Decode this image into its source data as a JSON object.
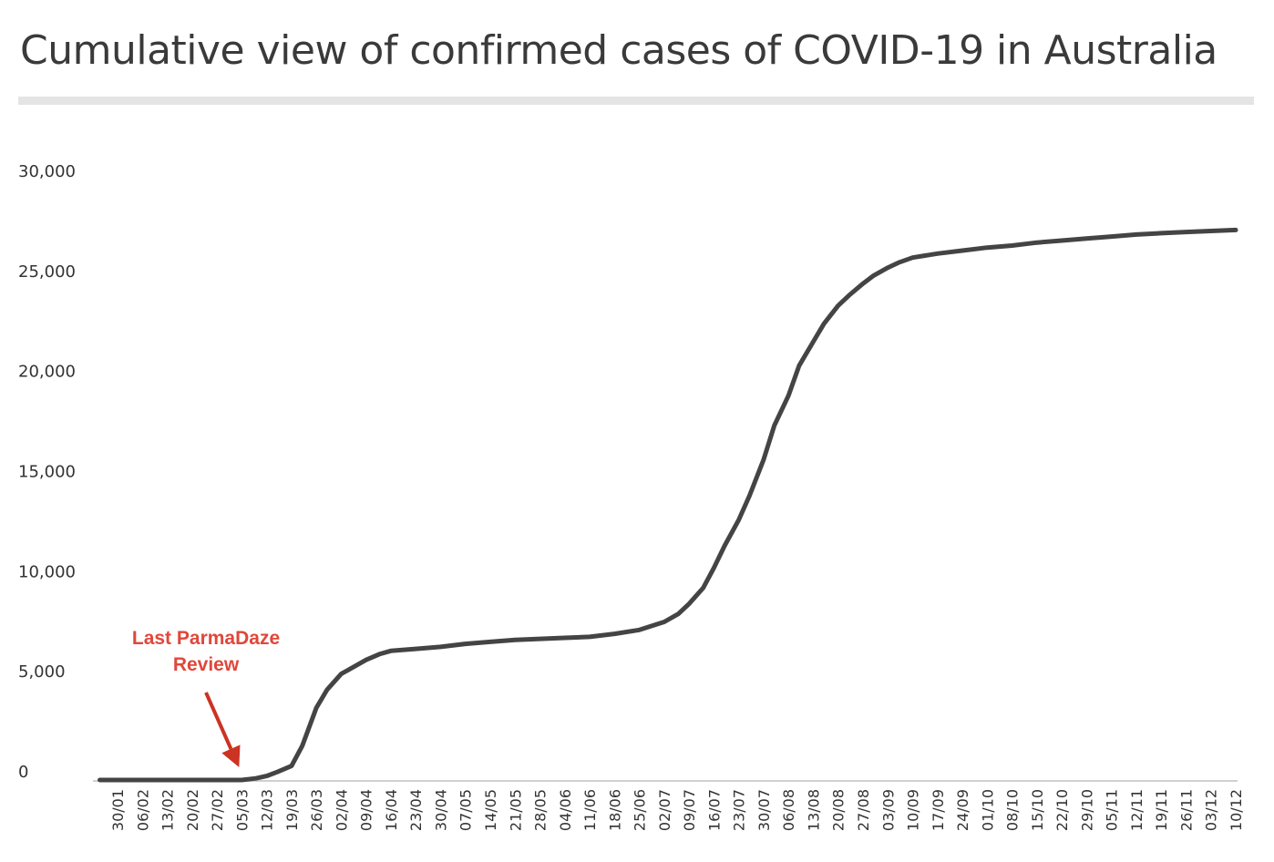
{
  "title": "Cumulative view of confirmed cases of COVID-19 in Australia",
  "colors": {
    "line": "#444444",
    "annotation": "#e0473a",
    "arrow": "#cc3322",
    "title_rule": "#e4e4e4"
  },
  "chart_data": {
    "type": "line",
    "title": "Cumulative view of confirmed cases of COVID-19 in Australia",
    "xlabel": "",
    "ylabel": "",
    "ylim": [
      0,
      30000
    ],
    "yticks": [
      0,
      5000,
      10000,
      15000,
      20000,
      25000,
      30000
    ],
    "ytick_labels": [
      "0",
      "5,000",
      "10,000",
      "15,000",
      "20,000",
      "25,000",
      "30,000"
    ],
    "xticks": [
      "30/01",
      "06/02",
      "13/02",
      "20/02",
      "27/02",
      "05/03",
      "12/03",
      "19/03",
      "26/03",
      "02/04",
      "09/04",
      "16/04",
      "23/04",
      "30/04",
      "07/05",
      "14/05",
      "21/05",
      "28/05",
      "04/06",
      "11/06",
      "18/06",
      "25/06",
      "02/07",
      "09/07",
      "16/07",
      "23/07",
      "30/07",
      "06/08",
      "13/08",
      "20/08",
      "27/08",
      "03/09",
      "10/09",
      "17/09",
      "24/09",
      "01/10",
      "08/10",
      "15/10",
      "22/10",
      "29/10",
      "05/11",
      "12/11",
      "19/11",
      "26/11",
      "03/12",
      "10/12"
    ],
    "grid": false,
    "legend": "none",
    "series": [
      {
        "x": [
          "25/01",
          "05/03",
          "09/03",
          "12/03",
          "15/03",
          "19/03",
          "22/03",
          "26/03",
          "29/03",
          "02/04",
          "06/04",
          "09/04",
          "13/04",
          "16/04",
          "23/04",
          "30/04",
          "07/05",
          "14/05",
          "21/05",
          "28/05",
          "04/06",
          "11/06",
          "18/06",
          "25/06",
          "02/07",
          "06/07",
          "09/07",
          "13/07",
          "16/07",
          "19/07",
          "23/07",
          "26/07",
          "30/07",
          "02/08",
          "06/08",
          "09/08",
          "13/08",
          "16/08",
          "20/08",
          "23/08",
          "27/08",
          "30/08",
          "03/09",
          "06/09",
          "10/09",
          "17/09",
          "24/09",
          "01/10",
          "08/10",
          "15/10",
          "22/10",
          "29/10",
          "05/11",
          "12/11",
          "19/11",
          "26/11",
          "03/12",
          "10/12"
        ],
        "values": [
          0,
          0,
          80,
          200,
          400,
          700,
          1700,
          3600,
          4500,
          5300,
          5700,
          6000,
          6300,
          6450,
          6550,
          6650,
          6800,
          6900,
          7000,
          7050,
          7100,
          7150,
          7300,
          7500,
          7900,
          8300,
          8800,
          9600,
          10600,
          11700,
          13000,
          14200,
          16000,
          17700,
          19200,
          20700,
          21900,
          22800,
          23700,
          24200,
          24800,
          25200,
          25600,
          25850,
          26100,
          26300,
          26450,
          26600,
          26700,
          26850,
          26950,
          27050,
          27150,
          27250,
          27320,
          27380,
          27430,
          27480
        ]
      }
    ],
    "annotations": [
      {
        "lines": [
          "Last ParmaDaze",
          "Review"
        ],
        "date": "05/03",
        "value": 0
      }
    ]
  }
}
